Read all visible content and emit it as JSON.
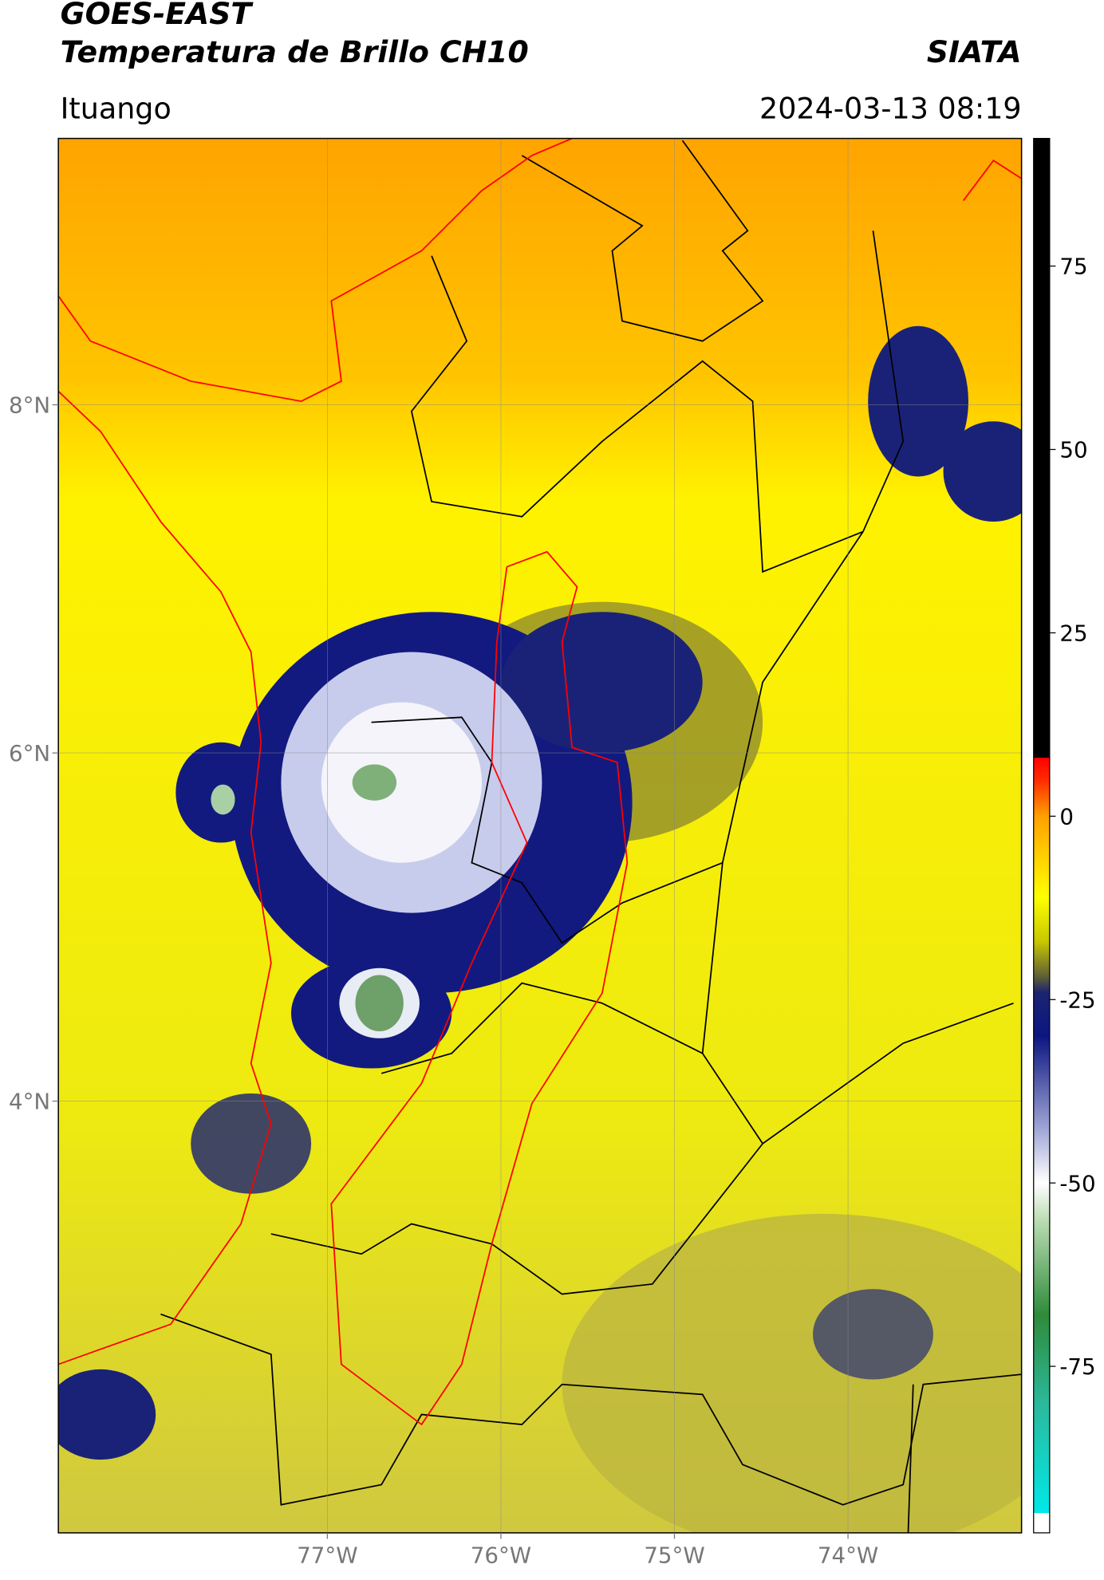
{
  "header": {
    "title": "GOES-EAST",
    "subtitle": "Temperatura de Brillo CH10",
    "credit": "SIATA",
    "location": "Ituango",
    "timestamp": "2024-03-13 08:19"
  },
  "map": {
    "xlim": [
      -78.55,
      -73.0
    ],
    "ylim": [
      1.52,
      9.53
    ],
    "xticks": [
      {
        "value": -77,
        "label": "77°W"
      },
      {
        "value": -76,
        "label": "76°W"
      },
      {
        "value": -75,
        "label": "75°W"
      },
      {
        "value": -74,
        "label": "74°W"
      }
    ],
    "yticks": [
      {
        "value": 4,
        "label": "4°N"
      },
      {
        "value": 6,
        "label": "6°N"
      },
      {
        "value": 8,
        "label": "8°N"
      }
    ],
    "grid": true
  },
  "colorbar": {
    "lim": [
      -97.7,
      92.4
    ],
    "ticks": [
      -75,
      -50,
      -25,
      0,
      25,
      50,
      75
    ],
    "stops": [
      {
        "value": -97.7,
        "color": "#ffffff"
      },
      {
        "value": -95,
        "color": "#ffffff"
      },
      {
        "value": -95,
        "color": "#00e8e8"
      },
      {
        "value": -80,
        "color": "#2cb89a"
      },
      {
        "value": -68,
        "color": "#2e8b3a"
      },
      {
        "value": -55,
        "color": "#bcdcb4"
      },
      {
        "value": -50,
        "color": "#ffffff"
      },
      {
        "value": -43,
        "color": "#a4aad8"
      },
      {
        "value": -30,
        "color": "#0c1680"
      },
      {
        "value": -24,
        "color": "#1c2470"
      },
      {
        "value": -22,
        "color": "#5c5c38"
      },
      {
        "value": -17,
        "color": "#c8c800"
      },
      {
        "value": -11,
        "color": "#ffff00"
      },
      {
        "value": 0,
        "color": "#ffa000"
      },
      {
        "value": 5,
        "color": "#ff2a00"
      },
      {
        "value": 8,
        "color": "#ff0000"
      },
      {
        "value": 8,
        "color": "#000000"
      },
      {
        "value": 92.4,
        "color": "#000000"
      }
    ]
  }
}
